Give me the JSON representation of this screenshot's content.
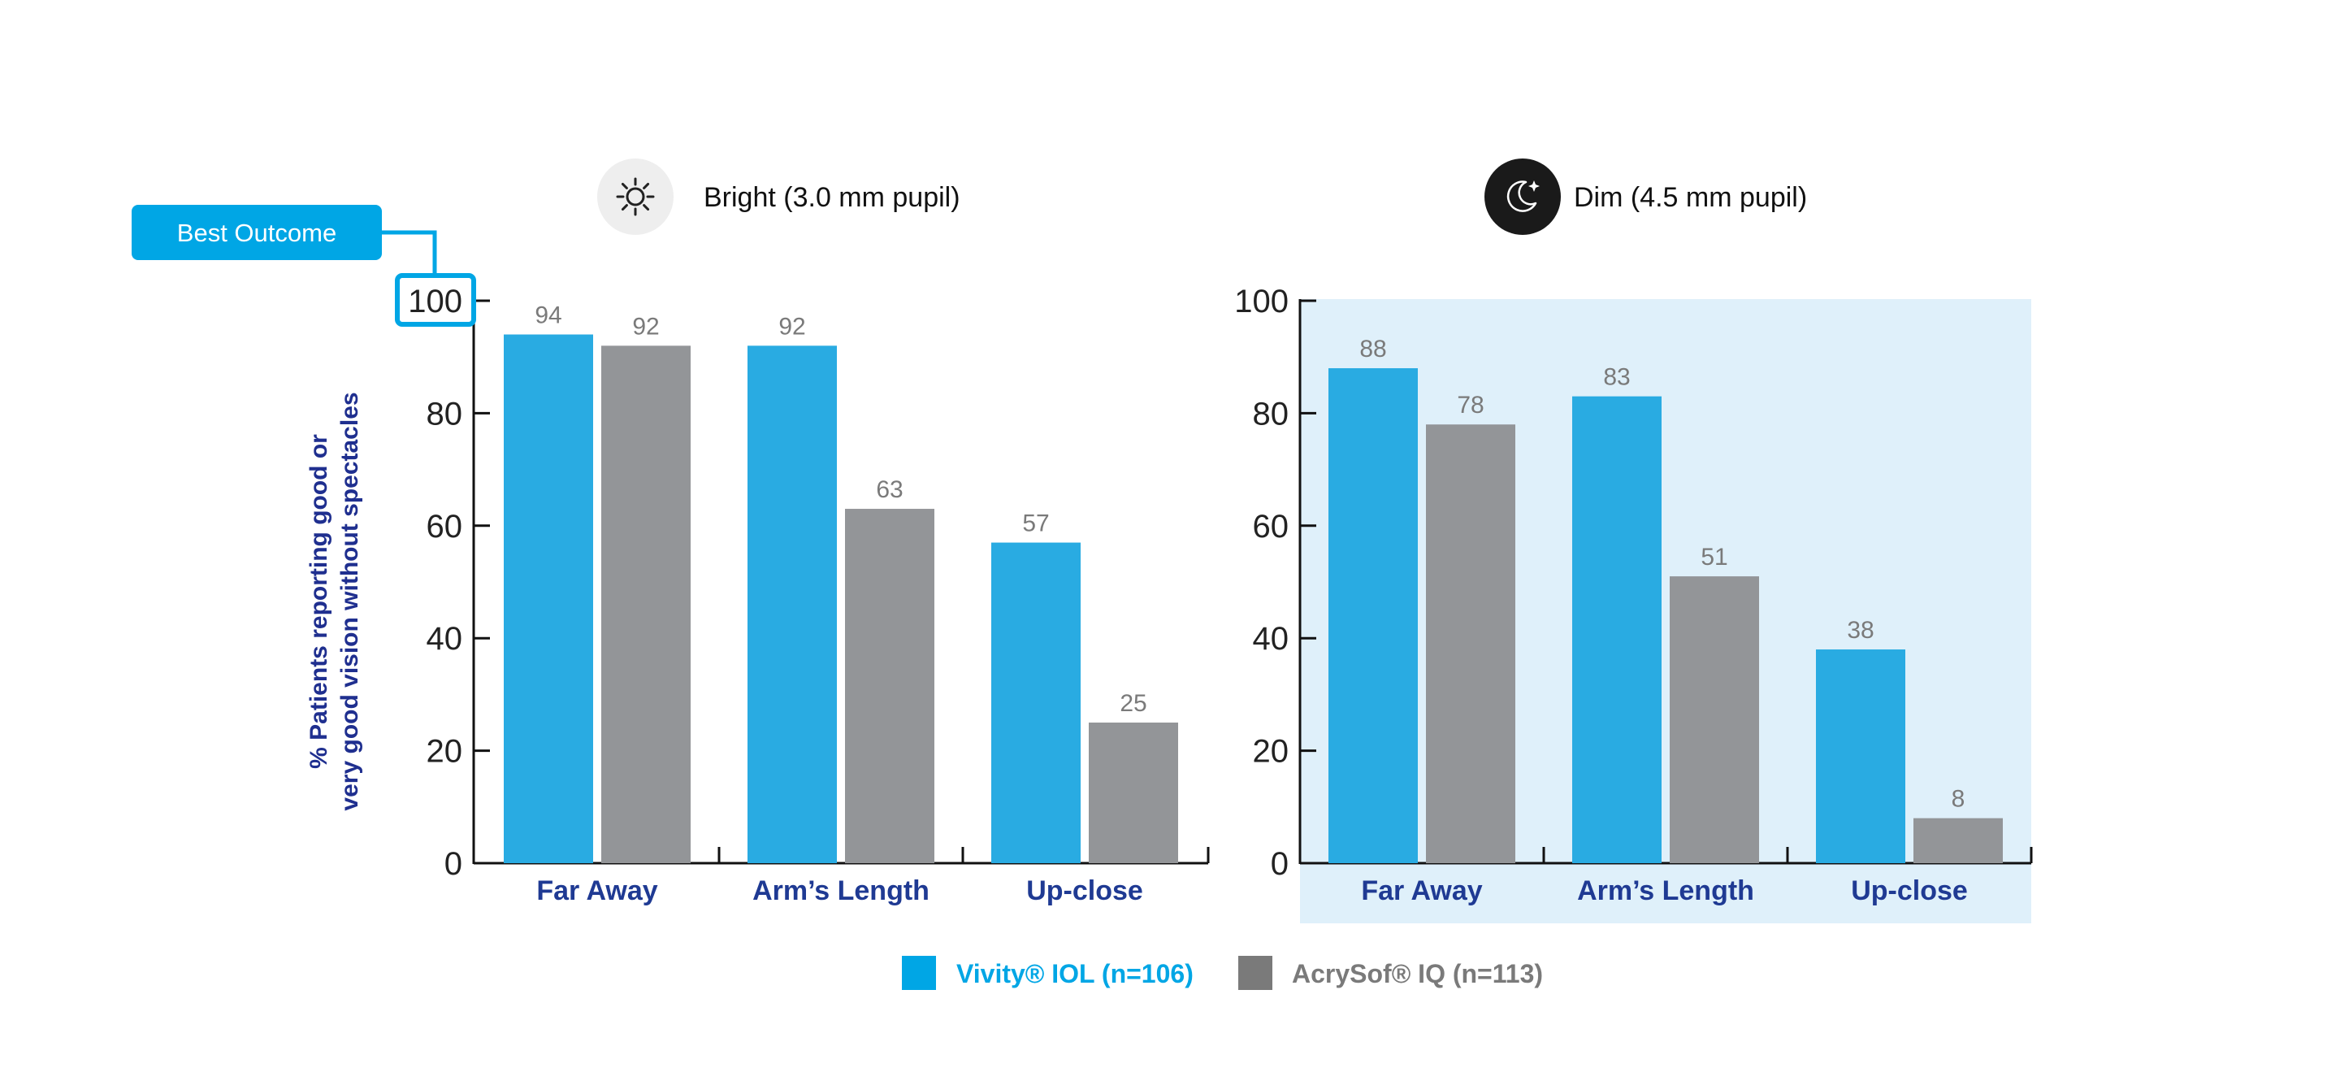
{
  "callout": {
    "label": "Best Outcome"
  },
  "y_axis_label": [
    "% Patients reporting good or",
    "very good vision without spectacles"
  ],
  "legend": [
    {
      "label": "Vivity® IOL (n=106)",
      "color": "#00a6e5"
    },
    {
      "label": "AcrySof® IQ (n=113)",
      "color": "#7a7a7a"
    }
  ],
  "colors": {
    "series_a": "#29abe2",
    "series_b": "#939598",
    "dim_bg": "#dff0fa",
    "axis": "#111111"
  },
  "panels": [
    {
      "title": "Bright (3.0 mm pupil)",
      "icon": "sun-icon",
      "icon_bg": "#eeeeee",
      "shaded": false
    },
    {
      "title": "Dim (4.5 mm pupil)",
      "icon": "moon-icon",
      "icon_bg": "#1a1a1a",
      "shaded": true
    }
  ],
  "chart_data": [
    {
      "type": "bar",
      "title": "Bright (3.0 mm pupil)",
      "categories": [
        "Far Away",
        "Arm’s Length",
        "Up-close"
      ],
      "series": [
        {
          "name": "Vivity® IOL (n=106)",
          "values": [
            94,
            92,
            57
          ]
        },
        {
          "name": "AcrySof® IQ (n=113)",
          "values": [
            92,
            63,
            25
          ]
        }
      ],
      "ylabel": "% Patients reporting good or very good vision without spectacles",
      "ylim": [
        0,
        100
      ],
      "yticks": [
        "0",
        "20",
        "40",
        "60",
        "80",
        "100"
      ],
      "grid": false,
      "legend": "bottom-center"
    },
    {
      "type": "bar",
      "title": "Dim (4.5 mm pupil)",
      "categories": [
        "Far Away",
        "Arm’s Length",
        "Up-close"
      ],
      "series": [
        {
          "name": "Vivity® IOL (n=106)",
          "values": [
            88,
            83,
            38
          ]
        },
        {
          "name": "AcrySof® IQ (n=113)",
          "values": [
            78,
            51,
            8
          ]
        }
      ],
      "ylim": [
        0,
        100
      ],
      "yticks": [
        "0",
        "20",
        "40",
        "60",
        "80",
        "100"
      ],
      "grid": false,
      "legend": "bottom-center"
    }
  ]
}
